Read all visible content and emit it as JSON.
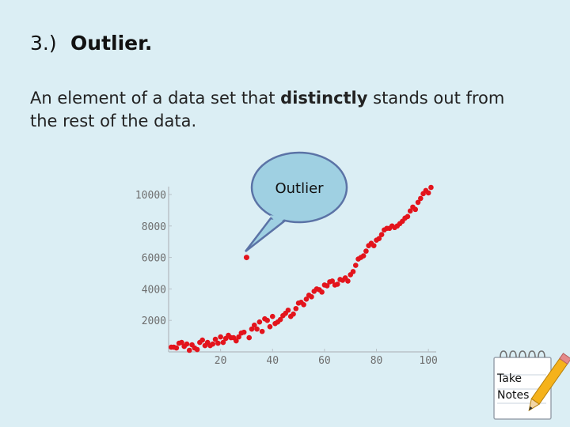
{
  "slide": {
    "title_number": "3.)",
    "title_term": "Outlier.",
    "definition_before": "An element of a data set that ",
    "definition_emphasis": "distinctly",
    "definition_after": " stands out from the rest of the data."
  },
  "callout": {
    "label": "Outlier",
    "fill": "#9fd0e2",
    "stroke": "#5b73a6"
  },
  "take_notes": {
    "line1": "Take",
    "line2": "Notes"
  },
  "chart_data": {
    "type": "scatter",
    "title": "",
    "xlabel": "",
    "ylabel": "",
    "xlim": [
      0,
      103
    ],
    "ylim": [
      0,
      10500
    ],
    "x_ticks": [
      20,
      40,
      60,
      80,
      100
    ],
    "y_ticks": [
      2000,
      4000,
      6000,
      8000,
      10000
    ],
    "x_tick_labels": [
      "20",
      "40",
      "60",
      "80",
      "100"
    ],
    "y_tick_labels": [
      "2000",
      "4000",
      "6000",
      "8000",
      "10000"
    ],
    "grid": false,
    "point_color": "#e3141c",
    "outlier": {
      "x": 30,
      "y": 6000,
      "label": "Outlier"
    },
    "points": [
      [
        1,
        300
      ],
      [
        2,
        300
      ],
      [
        3,
        250
      ],
      [
        4,
        550
      ],
      [
        5,
        600
      ],
      [
        6,
        350
      ],
      [
        7,
        500
      ],
      [
        8,
        100
      ],
      [
        9,
        450
      ],
      [
        10,
        250
      ],
      [
        11,
        150
      ],
      [
        12,
        600
      ],
      [
        13,
        750
      ],
      [
        14,
        400
      ],
      [
        15,
        600
      ],
      [
        16,
        400
      ],
      [
        17,
        500
      ],
      [
        18,
        800
      ],
      [
        19,
        550
      ],
      [
        20,
        950
      ],
      [
        21,
        600
      ],
      [
        22,
        850
      ],
      [
        23,
        1050
      ],
      [
        24,
        900
      ],
      [
        25,
        900
      ],
      [
        26,
        700
      ],
      [
        27,
        950
      ],
      [
        28,
        1200
      ],
      [
        29,
        1250
      ],
      [
        31,
        900
      ],
      [
        32,
        1450
      ],
      [
        33,
        1700
      ],
      [
        34,
        1450
      ],
      [
        35,
        1900
      ],
      [
        36,
        1300
      ],
      [
        37,
        2100
      ],
      [
        38,
        2000
      ],
      [
        39,
        1600
      ],
      [
        40,
        2250
      ],
      [
        41,
        1800
      ],
      [
        42,
        1900
      ],
      [
        43,
        2050
      ],
      [
        44,
        2300
      ],
      [
        45,
        2450
      ],
      [
        46,
        2650
      ],
      [
        47,
        2250
      ],
      [
        48,
        2400
      ],
      [
        49,
        2750
      ],
      [
        50,
        3100
      ],
      [
        51,
        3150
      ],
      [
        52,
        3000
      ],
      [
        53,
        3350
      ],
      [
        54,
        3600
      ],
      [
        55,
        3500
      ],
      [
        56,
        3850
      ],
      [
        57,
        4000
      ],
      [
        58,
        3950
      ],
      [
        59,
        3800
      ],
      [
        60,
        4250
      ],
      [
        61,
        4200
      ],
      [
        62,
        4450
      ],
      [
        63,
        4500
      ],
      [
        64,
        4250
      ],
      [
        65,
        4300
      ],
      [
        66,
        4600
      ],
      [
        67,
        4550
      ],
      [
        68,
        4700
      ],
      [
        69,
        4500
      ],
      [
        70,
        4900
      ],
      [
        71,
        5100
      ],
      [
        72,
        5500
      ],
      [
        73,
        5900
      ],
      [
        74,
        6000
      ],
      [
        75,
        6100
      ],
      [
        76,
        6400
      ],
      [
        77,
        6750
      ],
      [
        78,
        6900
      ],
      [
        79,
        6750
      ],
      [
        80,
        7100
      ],
      [
        81,
        7200
      ],
      [
        82,
        7450
      ],
      [
        83,
        7750
      ],
      [
        84,
        7850
      ],
      [
        85,
        7850
      ],
      [
        86,
        8000
      ],
      [
        87,
        7900
      ],
      [
        88,
        8000
      ],
      [
        89,
        8150
      ],
      [
        90,
        8300
      ],
      [
        91,
        8500
      ],
      [
        92,
        8600
      ],
      [
        93,
        8950
      ],
      [
        94,
        9200
      ],
      [
        95,
        9050
      ],
      [
        96,
        9500
      ],
      [
        97,
        9750
      ],
      [
        98,
        10050
      ],
      [
        99,
        10250
      ],
      [
        100,
        10100
      ],
      [
        101,
        10450
      ]
    ]
  }
}
